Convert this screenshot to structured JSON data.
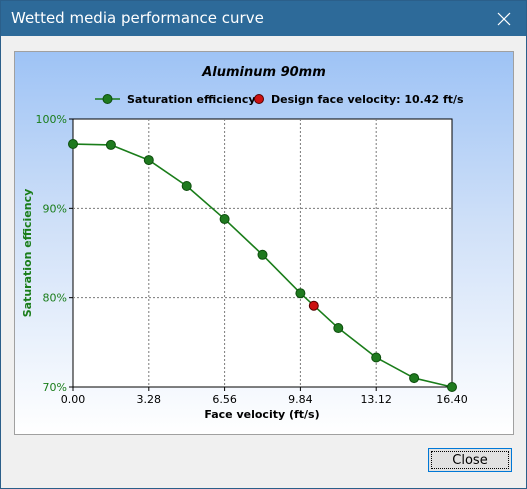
{
  "window": {
    "title": "Wetted media performance curve",
    "close_icon": "close-icon"
  },
  "buttons": {
    "close_label": "Close"
  },
  "colors": {
    "titlebar": "#2d6a99",
    "curve": "#1a7d1a",
    "marker": "#1f7a1f",
    "design_marker": "#cc1111",
    "axis_text_y": "#1a7d1a"
  },
  "chart_data": {
    "type": "line",
    "title": "Aluminum 90mm",
    "xlabel": "Face velocity (ft/s)",
    "ylabel": "Saturation efficiency",
    "xlim": [
      0,
      16.4
    ],
    "ylim": [
      70,
      100
    ],
    "x_ticks": [
      "0.00",
      "3.28",
      "6.56",
      "9.84",
      "13.12",
      "16.40"
    ],
    "x_tick_values": [
      0,
      3.28,
      6.56,
      9.84,
      13.12,
      16.4
    ],
    "y_ticks": [
      "70%",
      "80%",
      "90%",
      "100%"
    ],
    "y_tick_values": [
      70,
      80,
      90,
      100
    ],
    "grid": true,
    "legend_placement": "top",
    "series": [
      {
        "name": "Saturation efficiency",
        "x": [
          0.0,
          1.64,
          3.28,
          4.92,
          6.56,
          8.2,
          9.84,
          11.48,
          13.12,
          14.76,
          16.4
        ],
        "y": [
          97.2,
          97.1,
          95.4,
          92.5,
          88.8,
          84.8,
          80.5,
          76.6,
          73.3,
          71.0,
          70.0
        ]
      },
      {
        "name": "Design face velocity: 10.42 ft/s",
        "x": [
          10.42
        ],
        "y": [
          79.1
        ]
      }
    ]
  }
}
